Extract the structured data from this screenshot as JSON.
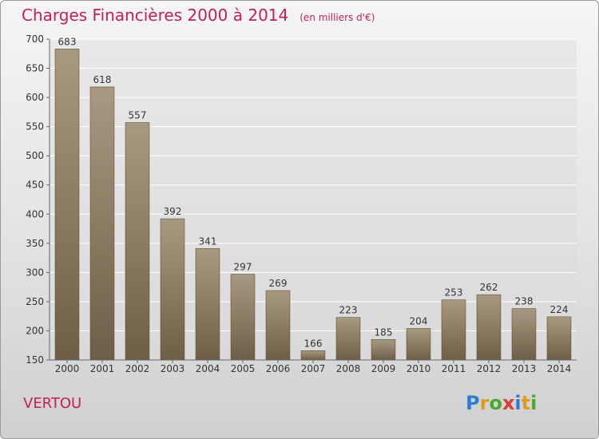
{
  "title": "Charges Financières 2000 à 2014",
  "unit_note": "(en milliers d'€)",
  "commune": "VERTOU",
  "logo": {
    "letters": [
      "P",
      "r",
      "o",
      "x",
      "i",
      "t",
      "i"
    ],
    "colors": [
      "#2a7fd4",
      "#e39a1b",
      "#49a82e",
      "#d93a3a",
      "#2a7fd4",
      "#e39a1b",
      "#49a82e"
    ]
  },
  "chart_data": {
    "type": "bar",
    "categories": [
      "2000",
      "2001",
      "2002",
      "2003",
      "2004",
      "2005",
      "2006",
      "2007",
      "2008",
      "2009",
      "2010",
      "2011",
      "2012",
      "2013",
      "2014"
    ],
    "values": [
      683,
      618,
      557,
      392,
      341,
      297,
      269,
      166,
      223,
      185,
      204,
      253,
      262,
      238,
      224
    ],
    "ylim": [
      150,
      700
    ],
    "yticks": [
      150,
      200,
      250,
      300,
      350,
      400,
      450,
      500,
      550,
      600,
      650,
      700
    ],
    "grid": true,
    "bar_color": "#8b7a5e"
  }
}
